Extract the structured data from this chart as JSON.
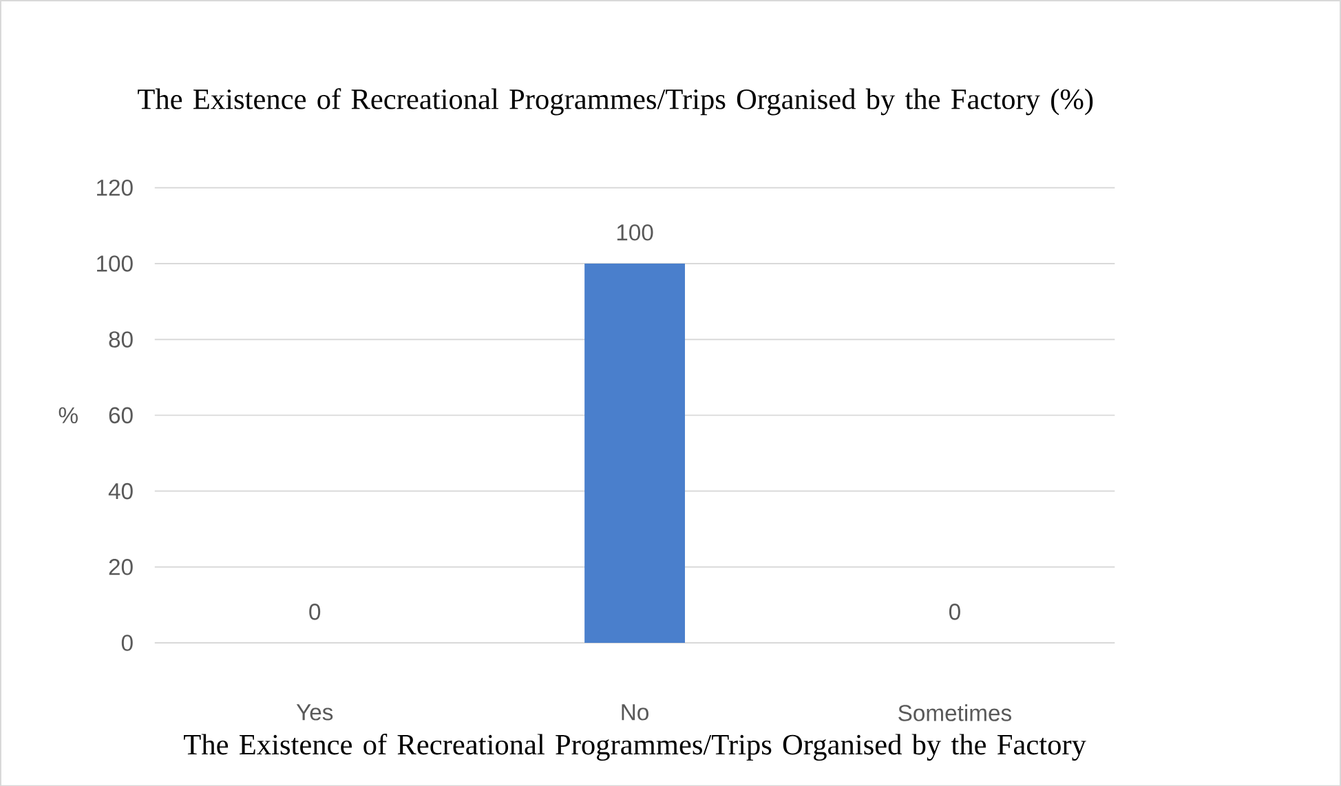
{
  "chart_data": {
    "type": "bar",
    "title": "The Existence of Recreational Programmes/Trips Organised by the Factory (%)",
    "xlabel": "The Existence of Recreational Programmes/Trips Organised by the Factory",
    "ylabel": "%",
    "categories": [
      "Yes",
      "No",
      "Sometimes"
    ],
    "values": [
      0,
      100,
      0
    ],
    "color": "#4a7fcc",
    "ylim": [
      0,
      120
    ],
    "yticks": [
      0,
      20,
      40,
      60,
      80,
      100,
      120
    ],
    "grid": "y",
    "data_labels": true
  }
}
